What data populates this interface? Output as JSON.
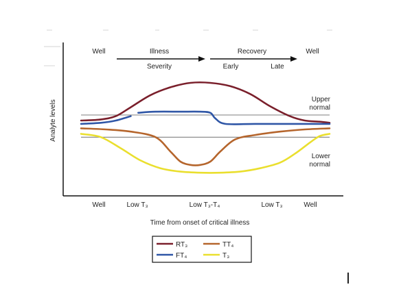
{
  "chart_data": {
    "type": "line",
    "ylabel": "Analyte levels",
    "xlabel": "Time from onset of critical illness",
    "x_tick_labels": [
      "Well",
      "Low T₃",
      "Low T₃-T₄",
      "Low T₃",
      "Well"
    ],
    "phases": {
      "well_left": "Well",
      "illness": "Illness",
      "severity": "Severity",
      "recovery": "Recovery",
      "early": "Early",
      "late": "Late",
      "well_right": "Well"
    },
    "reference_lines": {
      "upper": {
        "label_line1": "Upper",
        "label_line2": "normal",
        "level": 63
      },
      "lower": {
        "label_line1": "Lower",
        "label_line2": "normal",
        "level": 43
      }
    },
    "x_range": [
      0,
      100
    ],
    "y_range": [
      0,
      100
    ],
    "grid": false,
    "legend_position": "bottom-center",
    "series": [
      {
        "name": "RT₃",
        "color": "#7a1f2b",
        "x": [
          0,
          8,
          14,
          20,
          28,
          36,
          44,
          52,
          60,
          68,
          76,
          84,
          90,
          96,
          100
        ],
        "y": [
          58,
          59,
          62,
          70,
          81,
          88,
          92,
          92,
          89,
          82,
          71,
          62,
          58,
          57,
          56
        ]
      },
      {
        "name": "FT₄",
        "color": "#2f56a6",
        "segments": [
          {
            "x": [
              0,
              8,
              14,
              20
            ],
            "y": [
              55,
              56,
              58,
              62
            ]
          },
          {
            "x": [
              23,
              30,
              40,
              48,
              52,
              54,
              58,
              70,
              85,
              100
            ],
            "y": [
              65,
              66,
              66,
              66,
              65,
              60,
              55,
              55,
              55,
              55
            ]
          }
        ]
      },
      {
        "name": "TT₄",
        "color": "#b5652c",
        "x": [
          0,
          10,
          20,
          30,
          36,
          40,
          44,
          48,
          52,
          56,
          62,
          70,
          80,
          90,
          100
        ],
        "y": [
          51,
          50,
          48,
          43,
          30,
          21,
          18,
          18,
          21,
          30,
          41,
          45,
          48,
          50,
          51
        ]
      },
      {
        "name": "T₃",
        "color": "#eadf2e",
        "x": [
          0,
          8,
          16,
          24,
          32,
          40,
          48,
          56,
          64,
          72,
          80,
          86,
          92,
          96,
          100
        ],
        "y": [
          46,
          43,
          33,
          22,
          15,
          12,
          11,
          11,
          12,
          15,
          20,
          28,
          38,
          44,
          46
        ]
      }
    ],
    "legend": [
      {
        "label": "RT₃",
        "color": "#7a1f2b"
      },
      {
        "label": "TT₄",
        "color": "#b5652c"
      },
      {
        "label": "FT₄",
        "color": "#2f56a6"
      },
      {
        "label": "T₃",
        "color": "#eadf2e"
      }
    ]
  }
}
